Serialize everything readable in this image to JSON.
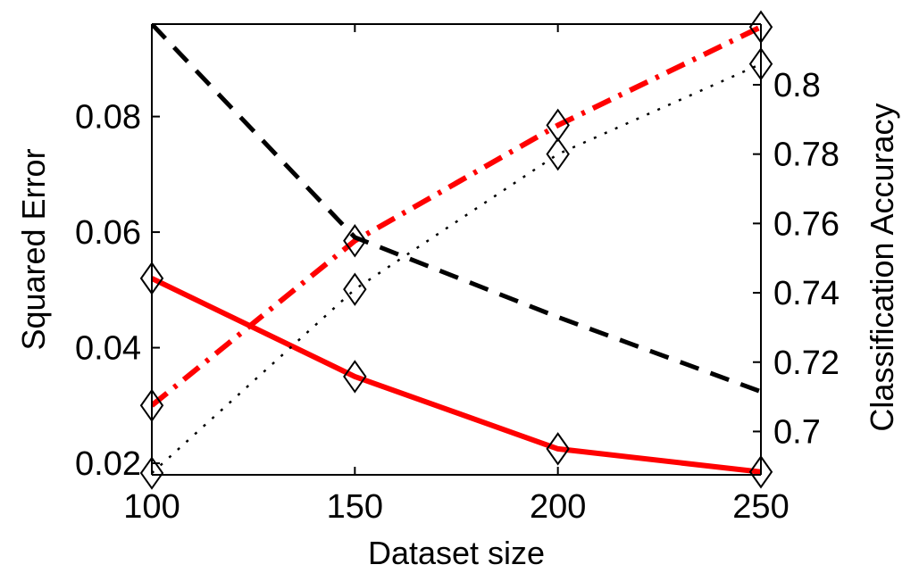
{
  "chart_data": {
    "type": "line",
    "title": "",
    "xlabel": "Dataset size",
    "ylabel_left": "Squared Error",
    "ylabel_right": "Classification Accuracy",
    "xlim": [
      100,
      250
    ],
    "ylim_left": [
      0.018,
      0.096
    ],
    "ylim_right": [
      0.6875,
      0.8175
    ],
    "x_ticks": [
      100,
      150,
      200,
      250
    ],
    "x_tick_labels": [
      "100",
      "150",
      "200",
      "250"
    ],
    "y_left_ticks": [
      0.02,
      0.04,
      0.06,
      0.08
    ],
    "y_left_tick_labels": [
      "0.02",
      "0.04",
      "0.06",
      "0.08"
    ],
    "y_right_ticks": [
      0.7,
      0.72,
      0.74,
      0.76,
      0.78,
      0.8
    ],
    "y_right_tick_labels": [
      "0.7",
      "0.72",
      "0.74",
      "0.76",
      "0.78",
      "0.8"
    ],
    "grid": false,
    "legend": "none",
    "series": [
      {
        "axis": "left",
        "color": "#ff0000",
        "dash": "solid",
        "marker": "diamond",
        "x": [
          100,
          150,
          200,
          250
        ],
        "y": [
          0.052,
          0.035,
          0.0225,
          0.0185
        ]
      },
      {
        "axis": "left",
        "color": "#ff0000",
        "dash": "dashdot",
        "marker": "diamond",
        "x": [
          100,
          150,
          200,
          250
        ],
        "y": [
          0.03,
          0.0585,
          0.0785,
          0.0955
        ]
      },
      {
        "axis": "right",
        "color": "#000000",
        "dash": "dotted",
        "marker": "diamond",
        "x": [
          100,
          150,
          200,
          250
        ],
        "y": [
          0.688,
          0.741,
          0.78,
          0.806
        ]
      },
      {
        "axis": "right",
        "color": "#000000",
        "dash": "dashed",
        "marker": "none",
        "x": [
          100,
          150,
          200,
          250
        ],
        "y": [
          0.8175,
          0.756,
          0.733,
          0.7115
        ]
      }
    ]
  }
}
